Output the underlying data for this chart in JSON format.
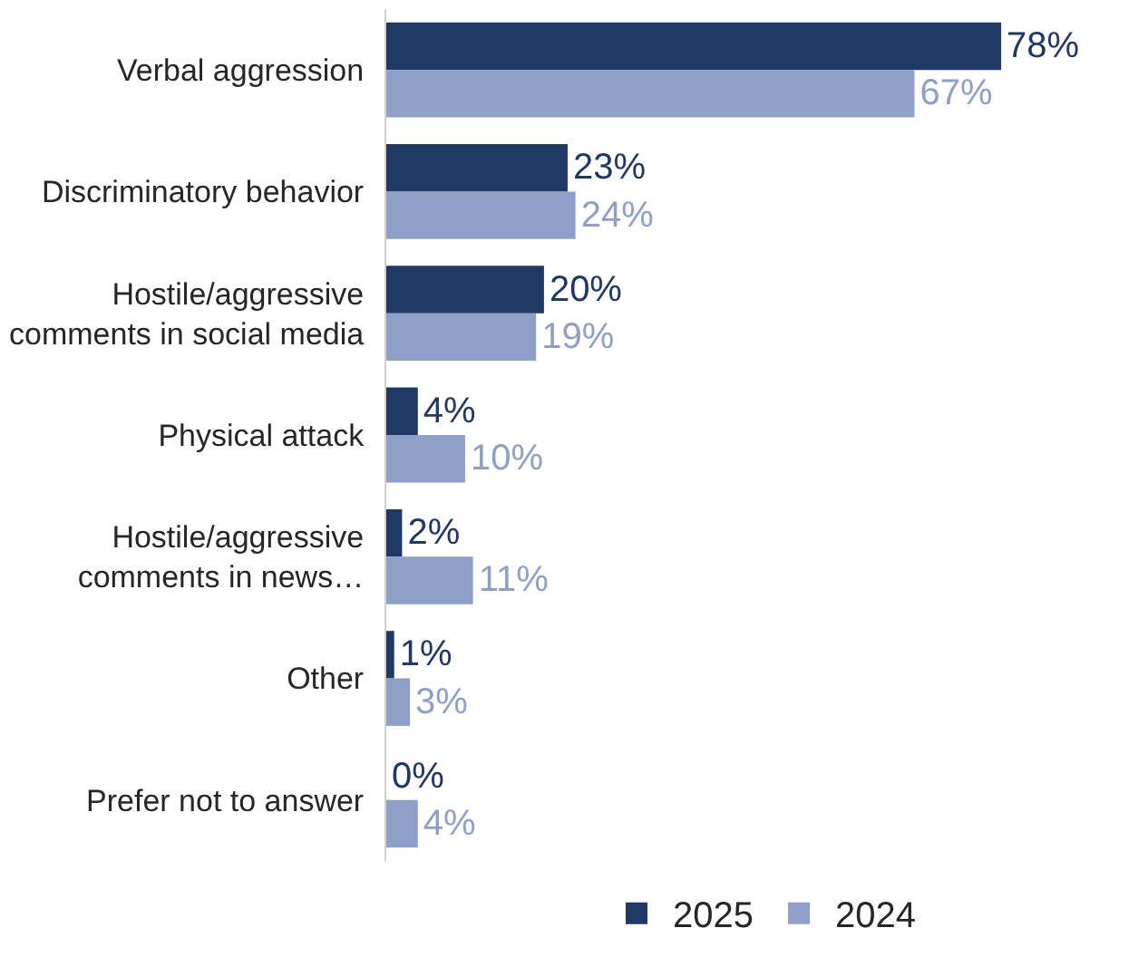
{
  "chart_data": {
    "type": "bar",
    "orientation": "horizontal",
    "categories": [
      "Verbal aggression",
      "Discriminatory behavior",
      "Hostile/aggressive\ncomments in social media",
      "Physical attack",
      "Hostile/aggressive\ncomments in news…",
      "Other",
      "Prefer not to answer"
    ],
    "series": [
      {
        "name": "2025",
        "color": "#1f3864",
        "values": [
          78,
          23,
          20,
          4,
          2,
          1,
          0
        ],
        "value_labels": [
          "78%",
          "23%",
          "20%",
          "4%",
          "2%",
          "1%",
          "0%"
        ]
      },
      {
        "name": "2024",
        "color": "#8fa0c8",
        "values": [
          67,
          24,
          19,
          10,
          11,
          3,
          4
        ],
        "value_labels": [
          "67%",
          "24%",
          "19%",
          "10%",
          "11%",
          "3%",
          "4%"
        ]
      }
    ],
    "legend": "bottom"
  }
}
